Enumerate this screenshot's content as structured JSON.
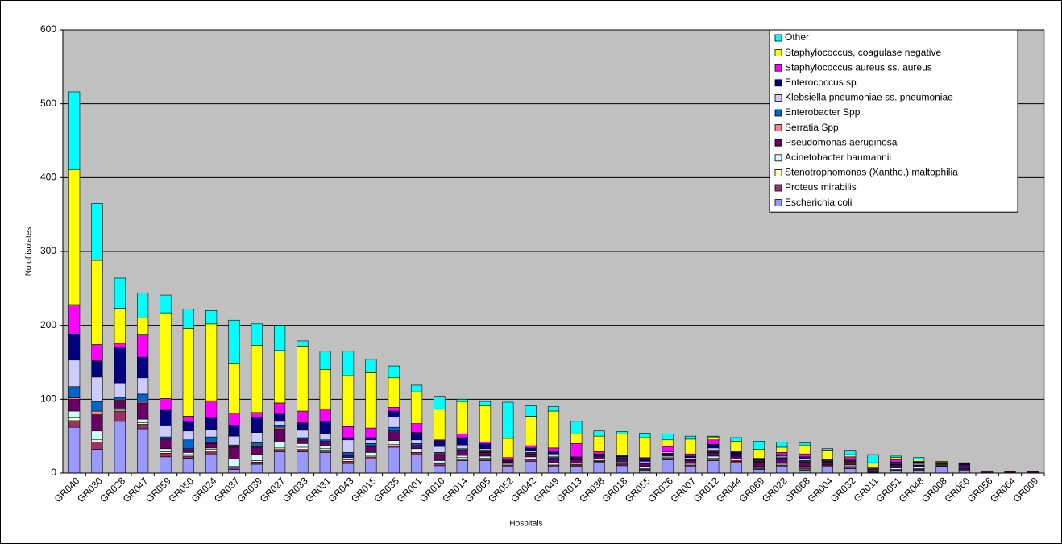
{
  "chart_data": {
    "type": "stacked_bar",
    "x_label": "Hospitals",
    "y_label": "No of isolates",
    "ylim": [
      0,
      600
    ],
    "yticks": [
      0,
      100,
      200,
      300,
      400,
      500,
      600
    ],
    "grid": true,
    "legend_position": "top-right",
    "categories": [
      "GR040",
      "GR030",
      "GR028",
      "GR047",
      "GR059",
      "GR050",
      "GR024",
      "GR037",
      "GR039",
      "GR027",
      "GR033",
      "GR031",
      "GR043",
      "GR015",
      "GR035",
      "GR001",
      "GR010",
      "GR014",
      "GR005",
      "GR052",
      "GR042",
      "GR049",
      "GR013",
      "GR038",
      "GR018",
      "GR055",
      "GR026",
      "GR007",
      "GR012",
      "GR044",
      "GR069",
      "GR022",
      "GR068",
      "GR004",
      "GR032",
      "GR011",
      "GR051",
      "GR048",
      "GR008",
      "GR060",
      "GR056",
      "GR064",
      "GR009"
    ],
    "series": [
      {
        "name": "Escherichia coli",
        "color": "#9999ff",
        "values": [
          62,
          32,
          70,
          60,
          22,
          20,
          26,
          5,
          12,
          29,
          29,
          28,
          13,
          19,
          35,
          25,
          10,
          17,
          17,
          8,
          16,
          8,
          9,
          15,
          10,
          4,
          18,
          8,
          17,
          14,
          5,
          8,
          4,
          8,
          6,
          1,
          3,
          4,
          9,
          4,
          0,
          0,
          0
        ]
      },
      {
        "name": "Proteus mirabilis",
        "color": "#993366",
        "values": [
          9,
          10,
          14,
          6,
          5,
          3,
          4,
          3,
          3,
          3,
          3,
          3,
          3,
          3,
          2,
          3,
          3,
          2,
          2,
          2,
          2,
          2,
          2,
          1,
          2,
          1,
          2,
          2,
          2,
          2,
          1,
          2,
          2,
          1,
          2,
          1,
          1,
          1,
          1,
          1,
          0,
          0,
          0
        ]
      },
      {
        "name": "Stenotrophomonas (Xantho.) maltophilia",
        "color": "#ffffcc",
        "values": [
          4,
          3,
          2,
          2,
          2,
          2,
          2,
          1,
          2,
          2,
          3,
          2,
          2,
          2,
          2,
          2,
          1,
          2,
          1,
          1,
          1,
          1,
          1,
          1,
          1,
          1,
          1,
          1,
          1,
          1,
          1,
          1,
          1,
          1,
          1,
          1,
          1,
          1,
          1,
          0,
          0,
          0,
          0
        ]
      },
      {
        "name": "Acinetobacter baumannii",
        "color": "#ccffff",
        "values": [
          9,
          12,
          2,
          5,
          4,
          3,
          2,
          10,
          8,
          8,
          5,
          4,
          3,
          4,
          5,
          3,
          3,
          3,
          3,
          2,
          3,
          3,
          2,
          2,
          2,
          3,
          2,
          2,
          3,
          2,
          2,
          2,
          2,
          1,
          2,
          1,
          2,
          3,
          1,
          1,
          0,
          0,
          0
        ]
      },
      {
        "name": "Pseudomonas aeruginosa",
        "color": "#660066",
        "values": [
          16,
          22,
          10,
          22,
          12,
          4,
          6,
          16,
          10,
          18,
          5,
          5,
          3,
          8,
          12,
          4,
          8,
          6,
          5,
          2,
          4,
          5,
          4,
          4,
          5,
          4,
          3,
          4,
          5,
          4,
          6,
          6,
          6,
          4,
          3,
          1,
          4,
          1,
          1,
          5,
          3,
          2,
          2
        ]
      },
      {
        "name": "Serratia Spp",
        "color": "#ff8080",
        "values": [
          2,
          5,
          1,
          2,
          1,
          1,
          1,
          1,
          1,
          2,
          1,
          1,
          1,
          1,
          1,
          1,
          1,
          1,
          1,
          0,
          1,
          1,
          0,
          0,
          0,
          0,
          0,
          1,
          1,
          0,
          0,
          1,
          1,
          0,
          1,
          0,
          0,
          0,
          0,
          0,
          0,
          0,
          0
        ]
      },
      {
        "name": "Enterobacter Spp",
        "color": "#0066cc",
        "values": [
          15,
          13,
          3,
          10,
          3,
          12,
          8,
          2,
          5,
          3,
          2,
          2,
          3,
          3,
          5,
          2,
          2,
          2,
          2,
          1,
          1,
          2,
          1,
          1,
          1,
          1,
          1,
          1,
          2,
          1,
          1,
          1,
          1,
          1,
          1,
          0,
          1,
          1,
          0,
          0,
          0,
          0,
          0
        ]
      },
      {
        "name": "Klebsiella pneumoniae ss. pneumoniae",
        "color": "#ccccff",
        "values": [
          36,
          33,
          20,
          22,
          16,
          12,
          10,
          12,
          14,
          5,
          10,
          8,
          17,
          5,
          14,
          5,
          8,
          5,
          2,
          1,
          3,
          4,
          1,
          1,
          1,
          2,
          2,
          2,
          3,
          1,
          1,
          2,
          2,
          1,
          1,
          1,
          1,
          2,
          1,
          0,
          0,
          0,
          0
        ]
      },
      {
        "name": "Enterococcus sp.",
        "color": "#000080",
        "values": [
          35,
          22,
          48,
          28,
          20,
          13,
          16,
          15,
          20,
          10,
          10,
          17,
          3,
          3,
          8,
          10,
          8,
          10,
          7,
          1,
          3,
          4,
          2,
          1,
          1,
          4,
          1,
          2,
          5,
          3,
          2,
          2,
          3,
          1,
          2,
          0,
          2,
          2,
          0,
          2,
          0,
          0,
          0
        ]
      },
      {
        "name": "Staphylococcus aureus ss. aureus",
        "color": "#ff00ff",
        "values": [
          40,
          22,
          5,
          30,
          16,
          7,
          23,
          16,
          7,
          15,
          16,
          17,
          15,
          13,
          5,
          12,
          1,
          5,
          2,
          3,
          3,
          4,
          18,
          3,
          1,
          1,
          6,
          3,
          6,
          1,
          1,
          3,
          4,
          1,
          3,
          1,
          3,
          1,
          0,
          0,
          0,
          0,
          0
        ]
      },
      {
        "name": "Staphylococcus, coagulase negative",
        "color": "#ffff00",
        "values": [
          183,
          114,
          48,
          23,
          116,
          119,
          104,
          67,
          91,
          71,
          88,
          53,
          69,
          75,
          40,
          43,
          42,
          44,
          49,
          26,
          40,
          50,
          13,
          21,
          29,
          27,
          9,
          20,
          4,
          14,
          12,
          7,
          12,
          12,
          3,
          7,
          3,
          3,
          1,
          0,
          0,
          0,
          0
        ]
      },
      {
        "name": "Other",
        "color": "#00ffff",
        "values": [
          105,
          77,
          41,
          34,
          24,
          26,
          18,
          59,
          29,
          33,
          7,
          25,
          33,
          18,
          16,
          9,
          17,
          3,
          6,
          49,
          14,
          6,
          17,
          7,
          3,
          6,
          8,
          4,
          1,
          5,
          11,
          7,
          3,
          2,
          6,
          11,
          2,
          2,
          1,
          1,
          0,
          0,
          0
        ]
      }
    ]
  }
}
